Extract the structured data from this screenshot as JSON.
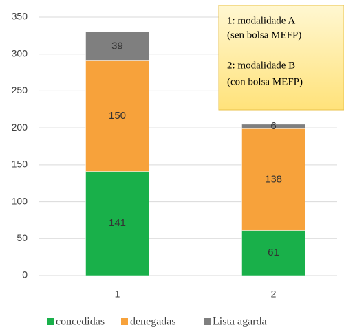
{
  "chart_data": {
    "type": "stacked_bar",
    "categories": [
      "1",
      "2"
    ],
    "series": [
      {
        "name": "concedidas",
        "color": "#19b04a",
        "values": [
          141,
          61
        ]
      },
      {
        "name": "denegadas",
        "color": "#f7a23b",
        "values": [
          150,
          138
        ]
      },
      {
        "name": "Lista agarda",
        "color": "#7f7f7f",
        "values": [
          39,
          6
        ]
      }
    ],
    "ylim": [
      0,
      350
    ],
    "yticks": [
      0,
      50,
      100,
      150,
      200,
      250,
      300,
      350
    ],
    "grid": true,
    "legend": "bottom",
    "annotations": [
      "1: modalidade A",
      "(sen bolsa MEFP)",
      "2: modalidade B",
      "(con bolsa MEFP)"
    ]
  }
}
